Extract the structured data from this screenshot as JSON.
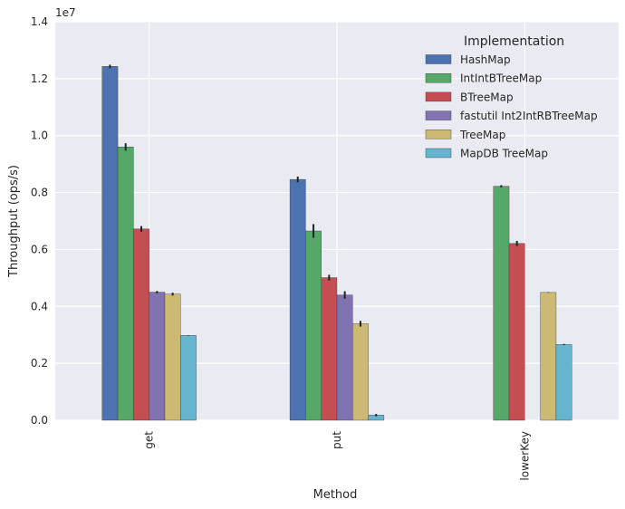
{
  "chart_data": {
    "type": "bar",
    "xlabel": "Method",
    "ylabel": "Throughput (ops/s)",
    "y_offset_label": "1e7",
    "ylim": [
      0,
      1.4
    ],
    "yticks": [
      "0.0",
      "0.2",
      "0.4",
      "0.6",
      "0.8",
      "1.0",
      "1.2",
      "1.4"
    ],
    "categories": [
      "get",
      "put",
      "lowerKey"
    ],
    "legend": {
      "title": "Implementation",
      "placement": "top-right"
    },
    "grid": true,
    "series": [
      {
        "name": "HashMap",
        "color": "#4c72b0",
        "values": [
          1.243,
          0.846,
          0.0
        ],
        "errors": [
          0.006,
          0.01,
          0.0
        ]
      },
      {
        "name": "IntIntBTreeMap",
        "color": "#55a868",
        "values": [
          0.96,
          0.665,
          0.822
        ],
        "errors": [
          0.013,
          0.024,
          0.004
        ]
      },
      {
        "name": "BTreeMap",
        "color": "#c44e52",
        "values": [
          0.672,
          0.501,
          0.621
        ],
        "errors": [
          0.01,
          0.01,
          0.009
        ]
      },
      {
        "name": "fastutil Int2IntRBTreeMap",
        "color": "#8172b2",
        "values": [
          0.45,
          0.44,
          null
        ],
        "errors": [
          0.004,
          0.013,
          null
        ]
      },
      {
        "name": "TreeMap",
        "color": "#ccb974",
        "values": [
          0.443,
          0.339,
          0.449
        ],
        "errors": [
          0.005,
          0.01,
          0.001
        ]
      },
      {
        "name": "MapDB TreeMap",
        "color": "#64b5cd",
        "values": [
          0.298,
          0.018,
          0.266
        ],
        "errors": [
          0.001,
          0.004,
          0.002
        ]
      }
    ]
  }
}
